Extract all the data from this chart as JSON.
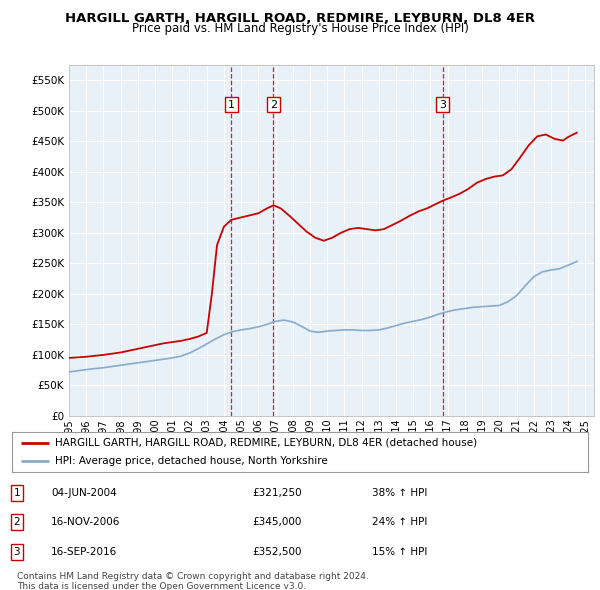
{
  "title": "HARGILL GARTH, HARGILL ROAD, REDMIRE, LEYBURN, DL8 4ER",
  "subtitle": "Price paid vs. HM Land Registry's House Price Index (HPI)",
  "title_fontsize": 9.5,
  "subtitle_fontsize": 8.5,
  "bg_color": "#e8f0f8",
  "ylim": [
    0,
    575000
  ],
  "xlim_start": 1995.0,
  "xlim_end": 2025.5,
  "yticks": [
    0,
    50000,
    100000,
    150000,
    200000,
    250000,
    300000,
    350000,
    400000,
    450000,
    500000,
    550000
  ],
  "ytick_labels": [
    "£0",
    "£50K",
    "£100K",
    "£150K",
    "£200K",
    "£250K",
    "£300K",
    "£350K",
    "£400K",
    "£450K",
    "£500K",
    "£550K"
  ],
  "xtick_years": [
    1995,
    1996,
    1997,
    1998,
    1999,
    2000,
    2001,
    2002,
    2003,
    2004,
    2005,
    2006,
    2007,
    2008,
    2009,
    2010,
    2011,
    2012,
    2013,
    2014,
    2015,
    2016,
    2017,
    2018,
    2019,
    2020,
    2021,
    2022,
    2023,
    2024,
    2025
  ],
  "sale_points": [
    {
      "num": 1,
      "date": "04-JUN-2004",
      "year": 2004.43,
      "price": 321250,
      "pct": "38%",
      "dir": "↑"
    },
    {
      "num": 2,
      "date": "16-NOV-2006",
      "year": 2006.88,
      "price": 345000,
      "pct": "24%",
      "dir": "↑"
    },
    {
      "num": 3,
      "date": "16-SEP-2016",
      "year": 2016.71,
      "price": 352500,
      "pct": "15%",
      "dir": "↑"
    }
  ],
  "legend_line1": "HARGILL GARTH, HARGILL ROAD, REDMIRE, LEYBURN, DL8 4ER (detached house)",
  "legend_line2": "HPI: Average price, detached house, North Yorkshire",
  "footer1": "Contains HM Land Registry data © Crown copyright and database right 2024.",
  "footer2": "This data is licensed under the Open Government Licence v3.0.",
  "red_color": "#cc0000",
  "blue_color": "#88aacc",
  "hpi_data": {
    "years": [
      1995.0,
      1995.5,
      1996.0,
      1996.5,
      1997.0,
      1997.5,
      1998.0,
      1998.5,
      1999.0,
      1999.5,
      2000.0,
      2000.5,
      2001.0,
      2001.5,
      2002.0,
      2002.5,
      2003.0,
      2003.5,
      2004.0,
      2004.5,
      2005.0,
      2005.5,
      2006.0,
      2006.5,
      2007.0,
      2007.5,
      2008.0,
      2008.5,
      2009.0,
      2009.5,
      2010.0,
      2010.5,
      2011.0,
      2011.5,
      2012.0,
      2012.5,
      2013.0,
      2013.5,
      2014.0,
      2014.5,
      2015.0,
      2015.5,
      2016.0,
      2016.5,
      2017.0,
      2017.5,
      2018.0,
      2018.5,
      2019.0,
      2019.5,
      2020.0,
      2020.5,
      2021.0,
      2021.5,
      2022.0,
      2022.5,
      2023.0,
      2023.5,
      2024.0,
      2024.5
    ],
    "values": [
      72000,
      74000,
      76000,
      77500,
      79000,
      81000,
      83000,
      85000,
      87000,
      89000,
      91000,
      93000,
      95000,
      98000,
      103000,
      110000,
      118000,
      126000,
      133000,
      138000,
      141000,
      143000,
      146000,
      150000,
      155000,
      157000,
      154000,
      147000,
      139000,
      137000,
      139000,
      140000,
      141000,
      141000,
      140000,
      140000,
      141000,
      144000,
      148000,
      152000,
      155000,
      158000,
      162000,
      167000,
      171000,
      174000,
      176000,
      178000,
      179000,
      180000,
      181000,
      187000,
      197000,
      213000,
      228000,
      236000,
      239000,
      241000,
      247000,
      253000
    ]
  },
  "property_data": {
    "years": [
      1995.0,
      1995.5,
      1996.0,
      1996.5,
      1997.0,
      1997.5,
      1998.0,
      1998.5,
      1999.0,
      1999.5,
      2000.0,
      2000.5,
      2001.0,
      2001.5,
      2002.0,
      2002.5,
      2003.0,
      2003.3,
      2003.6,
      2004.0,
      2004.43,
      2004.43,
      2006.0,
      2006.5,
      2006.88,
      2006.88,
      2007.3,
      2007.8,
      2008.3,
      2008.8,
      2009.3,
      2009.8,
      2010.3,
      2010.8,
      2011.3,
      2011.8,
      2012.3,
      2012.8,
      2013.3,
      2013.8,
      2014.3,
      2014.8,
      2015.3,
      2015.8,
      2016.3,
      2016.71,
      2016.71,
      2017.2,
      2017.7,
      2018.2,
      2018.7,
      2019.2,
      2019.7,
      2020.2,
      2020.7,
      2021.2,
      2021.7,
      2022.2,
      2022.7,
      2023.2,
      2023.7,
      2024.0,
      2024.5
    ],
    "values": [
      95000,
      96000,
      97000,
      98500,
      100000,
      102000,
      104000,
      107000,
      110000,
      113000,
      116000,
      119000,
      121000,
      123000,
      126000,
      130000,
      136000,
      200000,
      280000,
      310000,
      321250,
      321250,
      332000,
      340000,
      345000,
      345000,
      340000,
      328000,
      315000,
      302000,
      292000,
      287000,
      292000,
      300000,
      306000,
      308000,
      306000,
      304000,
      306000,
      313000,
      320000,
      328000,
      335000,
      340000,
      347000,
      352500,
      352500,
      358000,
      364000,
      372000,
      382000,
      388000,
      392000,
      394000,
      404000,
      423000,
      443000,
      458000,
      461000,
      454000,
      451000,
      457000,
      464000
    ]
  }
}
